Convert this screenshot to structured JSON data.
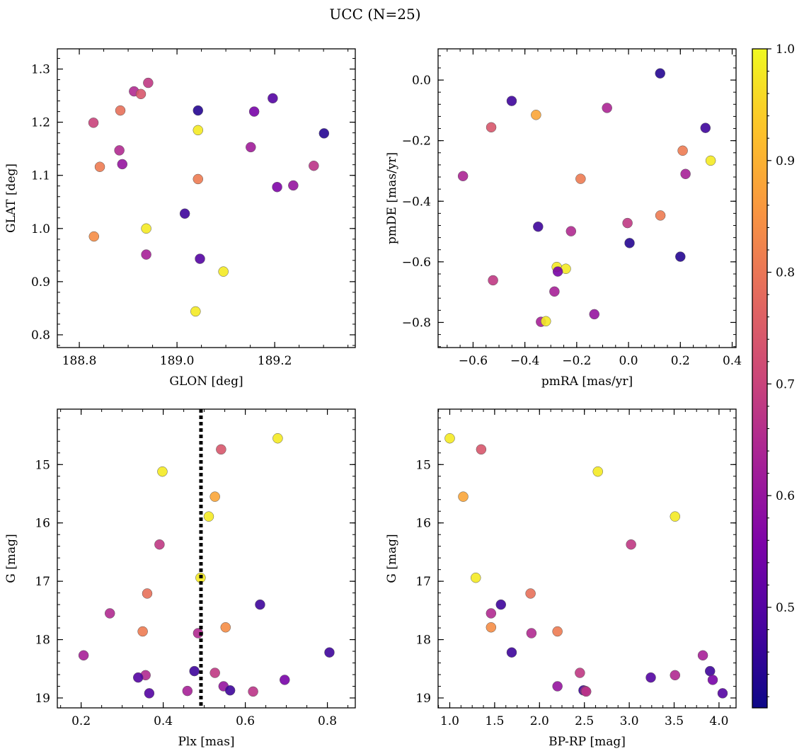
{
  "figure_title": "UCC (N=25)",
  "colors": {
    "marker_edge": "#555555",
    "vline": "#000000"
  },
  "colorbar": {
    "min": 0.41,
    "max": 1.0,
    "ticks": [
      0.5,
      0.6,
      0.7,
      0.8,
      0.9,
      1.0
    ],
    "tick_labels": [
      "0.5",
      "0.6",
      "0.7",
      "0.8",
      "0.9",
      "1.0"
    ],
    "colormap": "plasma"
  },
  "chart_data": [
    {
      "type": "scatter",
      "name": "glon-glat",
      "xlabel": "GLON [deg]",
      "ylabel": "GLAT [deg]",
      "xlim": [
        188.755,
        189.365
      ],
      "ylim": [
        0.776,
        1.338
      ],
      "xticks": [
        188.8,
        189.0,
        189.2
      ],
      "xtick_labels": [
        "188.8",
        "189.0",
        "189.2"
      ],
      "yticks": [
        0.8,
        0.9,
        1.0,
        1.1,
        1.2,
        1.3
      ],
      "ytick_labels": [
        "0.8",
        "0.9",
        "1.0",
        "1.1",
        "1.2",
        "1.3"
      ],
      "y_inverted": false,
      "points": [
        {
          "x": 188.941,
          "y": 1.274,
          "p": 0.68
        },
        {
          "x": 188.912,
          "y": 1.258,
          "p": 0.65
        },
        {
          "x": 188.926,
          "y": 1.253,
          "p": 0.74
        },
        {
          "x": 188.829,
          "y": 1.199,
          "p": 0.7
        },
        {
          "x": 188.884,
          "y": 1.222,
          "p": 0.79
        },
        {
          "x": 189.043,
          "y": 1.222,
          "p": 0.44
        },
        {
          "x": 189.196,
          "y": 1.245,
          "p": 0.5
        },
        {
          "x": 189.158,
          "y": 1.22,
          "p": 0.55
        },
        {
          "x": 189.043,
          "y": 1.185,
          "p": 0.98
        },
        {
          "x": 189.301,
          "y": 1.179,
          "p": 0.44
        },
        {
          "x": 188.882,
          "y": 1.147,
          "p": 0.65
        },
        {
          "x": 189.151,
          "y": 1.153,
          "p": 0.62
        },
        {
          "x": 188.842,
          "y": 1.116,
          "p": 0.81
        },
        {
          "x": 188.888,
          "y": 1.121,
          "p": 0.6
        },
        {
          "x": 189.28,
          "y": 1.118,
          "p": 0.67
        },
        {
          "x": 189.043,
          "y": 1.093,
          "p": 0.81
        },
        {
          "x": 189.205,
          "y": 1.078,
          "p": 0.56
        },
        {
          "x": 189.238,
          "y": 1.081,
          "p": 0.6
        },
        {
          "x": 189.016,
          "y": 1.028,
          "p": 0.47
        },
        {
          "x": 188.83,
          "y": 0.985,
          "p": 0.84
        },
        {
          "x": 188.937,
          "y": 1.0,
          "p": 0.98
        },
        {
          "x": 188.937,
          "y": 0.951,
          "p": 0.63
        },
        {
          "x": 189.047,
          "y": 0.943,
          "p": 0.5
        },
        {
          "x": 189.095,
          "y": 0.919,
          "p": 0.98
        },
        {
          "x": 189.038,
          "y": 0.844,
          "p": 0.98
        }
      ]
    },
    {
      "type": "scatter",
      "name": "pmra-pmde",
      "xlabel": "pmRA [mas/yr]",
      "ylabel": "pmDE [mas/yr]",
      "xlim": [
        -0.735,
        0.415
      ],
      "ylim": [
        -0.883,
        0.103
      ],
      "xticks": [
        -0.6,
        -0.4,
        -0.2,
        0.0,
        0.2,
        0.4
      ],
      "xtick_labels": [
        "−0.6",
        "−0.4",
        "−0.2",
        "0.0",
        "0.2",
        "0.4"
      ],
      "yticks": [
        -0.8,
        -0.6,
        -0.4,
        -0.2,
        0.0
      ],
      "ytick_labels": [
        "−0.8",
        "−0.6",
        "−0.4",
        "−0.2",
        "0.0"
      ],
      "y_inverted": false,
      "points": [
        {
          "x": 0.122,
          "y": 0.022,
          "p": 0.44
        },
        {
          "x": -0.451,
          "y": -0.069,
          "p": 0.47
        },
        {
          "x": -0.083,
          "y": -0.092,
          "p": 0.64
        },
        {
          "x": -0.357,
          "y": -0.115,
          "p": 0.88
        },
        {
          "x": -0.53,
          "y": -0.156,
          "p": 0.74
        },
        {
          "x": 0.297,
          "y": -0.158,
          "p": 0.47
        },
        {
          "x": 0.209,
          "y": -0.233,
          "p": 0.81
        },
        {
          "x": 0.317,
          "y": -0.266,
          "p": 0.98
        },
        {
          "x": -0.639,
          "y": -0.317,
          "p": 0.64
        },
        {
          "x": 0.22,
          "y": -0.31,
          "p": 0.63
        },
        {
          "x": -0.185,
          "y": -0.326,
          "p": 0.81
        },
        {
          "x": 0.123,
          "y": -0.447,
          "p": 0.81
        },
        {
          "x": -0.349,
          "y": -0.484,
          "p": 0.47
        },
        {
          "x": -0.004,
          "y": -0.472,
          "p": 0.68
        },
        {
          "x": -0.222,
          "y": -0.499,
          "p": 0.65
        },
        {
          "x": 0.004,
          "y": -0.538,
          "p": 0.44
        },
        {
          "x": 0.2,
          "y": -0.583,
          "p": 0.44
        },
        {
          "x": -0.523,
          "y": -0.661,
          "p": 0.68
        },
        {
          "x": -0.277,
          "y": -0.617,
          "p": 0.98
        },
        {
          "x": -0.242,
          "y": -0.623,
          "p": 0.98
        },
        {
          "x": -0.273,
          "y": -0.632,
          "p": 0.55
        },
        {
          "x": -0.286,
          "y": -0.698,
          "p": 0.63
        },
        {
          "x": -0.132,
          "y": -0.773,
          "p": 0.6
        },
        {
          "x": -0.338,
          "y": -0.798,
          "p": 0.63
        },
        {
          "x": -0.319,
          "y": -0.796,
          "p": 0.98
        }
      ]
    },
    {
      "type": "scatter",
      "name": "plx-g",
      "xlabel": "Plx [mas]",
      "ylabel": "G [mag]",
      "xlim": [
        0.142,
        0.868
      ],
      "ylim": [
        14.05,
        19.17
      ],
      "xticks": [
        0.2,
        0.4,
        0.6,
        0.8
      ],
      "xtick_labels": [
        "0.2",
        "0.4",
        "0.6",
        "0.8"
      ],
      "yticks": [
        15,
        16,
        17,
        18,
        19
      ],
      "ytick_labels": [
        "15",
        "16",
        "17",
        "18",
        "19"
      ],
      "y_inverted": true,
      "vline": {
        "x": 0.492,
        "style": "dotted"
      },
      "points": [
        {
          "x": 0.679,
          "y": 14.55,
          "p": 0.98
        },
        {
          "x": 0.541,
          "y": 14.74,
          "p": 0.74
        },
        {
          "x": 0.398,
          "y": 15.12,
          "p": 0.98
        },
        {
          "x": 0.526,
          "y": 15.55,
          "p": 0.88
        },
        {
          "x": 0.511,
          "y": 15.89,
          "p": 0.98
        },
        {
          "x": 0.391,
          "y": 16.37,
          "p": 0.68
        },
        {
          "x": 0.491,
          "y": 16.94,
          "p": 0.98
        },
        {
          "x": 0.361,
          "y": 17.21,
          "p": 0.79
        },
        {
          "x": 0.636,
          "y": 17.4,
          "p": 0.47
        },
        {
          "x": 0.27,
          "y": 17.55,
          "p": 0.65
        },
        {
          "x": 0.552,
          "y": 17.79,
          "p": 0.84
        },
        {
          "x": 0.35,
          "y": 17.86,
          "p": 0.81
        },
        {
          "x": 0.485,
          "y": 17.89,
          "p": 0.65
        },
        {
          "x": 0.805,
          "y": 18.22,
          "p": 0.47
        },
        {
          "x": 0.206,
          "y": 18.27,
          "p": 0.63
        },
        {
          "x": 0.476,
          "y": 18.54,
          "p": 0.47
        },
        {
          "x": 0.526,
          "y": 18.57,
          "p": 0.68
        },
        {
          "x": 0.357,
          "y": 18.61,
          "p": 0.65
        },
        {
          "x": 0.339,
          "y": 18.65,
          "p": 0.5
        },
        {
          "x": 0.696,
          "y": 18.69,
          "p": 0.55
        },
        {
          "x": 0.547,
          "y": 18.8,
          "p": 0.6
        },
        {
          "x": 0.459,
          "y": 18.88,
          "p": 0.63
        },
        {
          "x": 0.563,
          "y": 18.87,
          "p": 0.47
        },
        {
          "x": 0.619,
          "y": 18.89,
          "p": 0.67
        },
        {
          "x": 0.366,
          "y": 18.92,
          "p": 0.5
        }
      ]
    },
    {
      "type": "scatter",
      "name": "color-g",
      "xlabel": "BP-RP [mag]",
      "ylabel": "G [mag]",
      "xlim": [
        0.87,
        4.19
      ],
      "ylim": [
        14.05,
        19.17
      ],
      "xticks": [
        1.0,
        1.5,
        2.0,
        2.5,
        3.0,
        3.5,
        4.0
      ],
      "xtick_labels": [
        "1.0",
        "1.5",
        "2.0",
        "2.5",
        "3.0",
        "3.5",
        "4.0"
      ],
      "yticks": [
        15,
        16,
        17,
        18,
        19
      ],
      "ytick_labels": [
        "15",
        "16",
        "17",
        "18",
        "19"
      ],
      "y_inverted": true,
      "points": [
        {
          "x": 1.0,
          "y": 14.55,
          "p": 0.98
        },
        {
          "x": 1.35,
          "y": 14.74,
          "p": 0.74
        },
        {
          "x": 1.15,
          "y": 15.55,
          "p": 0.88
        },
        {
          "x": 2.65,
          "y": 15.12,
          "p": 0.98
        },
        {
          "x": 3.51,
          "y": 15.89,
          "p": 0.98
        },
        {
          "x": 3.02,
          "y": 16.37,
          "p": 0.68
        },
        {
          "x": 1.29,
          "y": 16.94,
          "p": 0.98
        },
        {
          "x": 1.9,
          "y": 17.21,
          "p": 0.79
        },
        {
          "x": 1.57,
          "y": 17.4,
          "p": 0.47
        },
        {
          "x": 1.46,
          "y": 17.55,
          "p": 0.65
        },
        {
          "x": 1.46,
          "y": 17.79,
          "p": 0.84
        },
        {
          "x": 2.2,
          "y": 17.86,
          "p": 0.81
        },
        {
          "x": 1.91,
          "y": 17.89,
          "p": 0.65
        },
        {
          "x": 1.69,
          "y": 18.22,
          "p": 0.47
        },
        {
          "x": 3.82,
          "y": 18.27,
          "p": 0.63
        },
        {
          "x": 3.9,
          "y": 18.54,
          "p": 0.47
        },
        {
          "x": 2.45,
          "y": 18.57,
          "p": 0.68
        },
        {
          "x": 3.51,
          "y": 18.61,
          "p": 0.65
        },
        {
          "x": 3.24,
          "y": 18.65,
          "p": 0.5
        },
        {
          "x": 3.93,
          "y": 18.69,
          "p": 0.55
        },
        {
          "x": 2.2,
          "y": 18.8,
          "p": 0.6
        },
        {
          "x": 2.49,
          "y": 18.87,
          "p": 0.47
        },
        {
          "x": 2.51,
          "y": 18.88,
          "p": 0.63
        },
        {
          "x": 2.52,
          "y": 18.89,
          "p": 0.67
        },
        {
          "x": 4.04,
          "y": 18.92,
          "p": 0.5
        }
      ]
    }
  ]
}
